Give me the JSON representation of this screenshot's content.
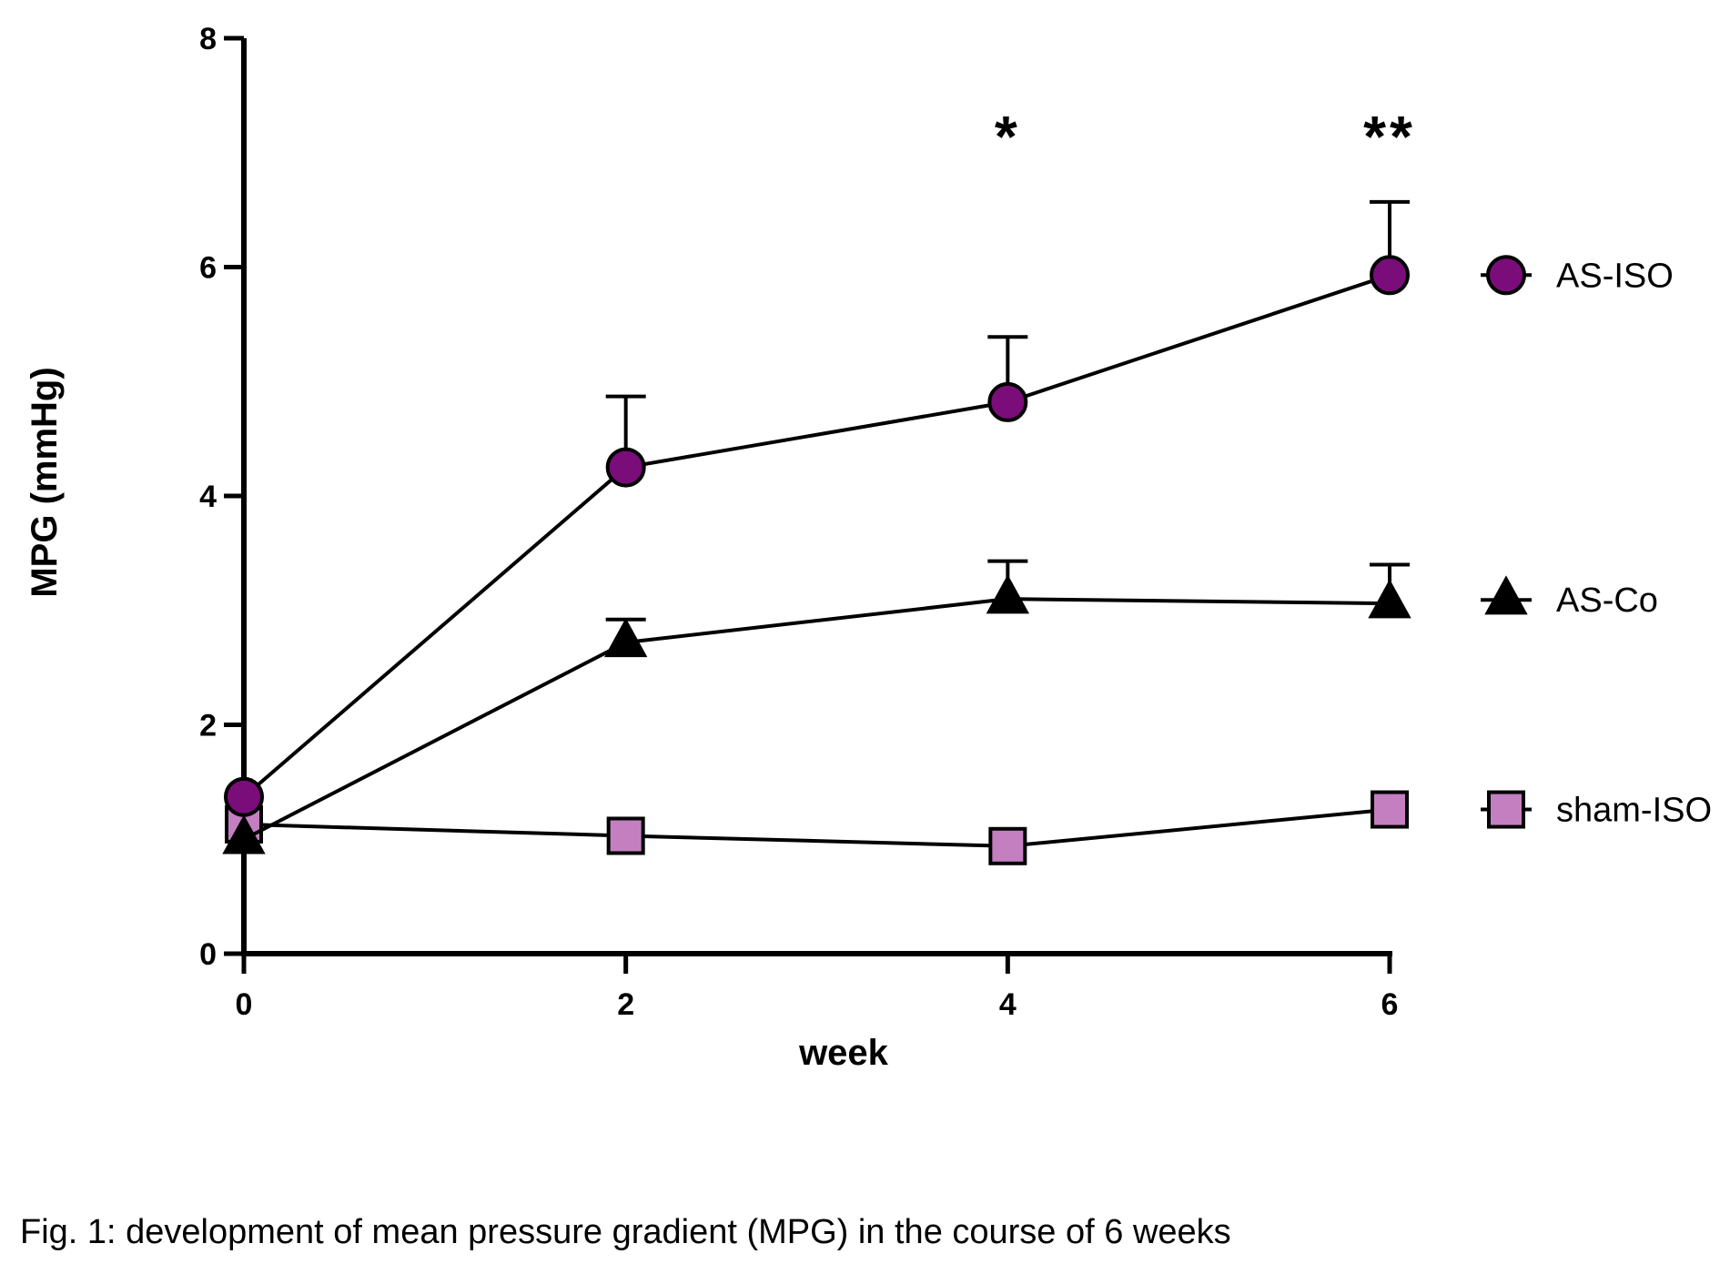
{
  "caption": "Fig. 1: development of mean pressure gradient (MPG) in the course of 6 weeks",
  "chart_data": {
    "type": "line",
    "title": "",
    "xlabel": "week",
    "ylabel": "MPG (mmHg)",
    "x": [
      0,
      2,
      4,
      6
    ],
    "xlim": [
      0,
      6
    ],
    "ylim": [
      0,
      8
    ],
    "xticks": [
      0,
      2,
      4,
      6
    ],
    "yticks": [
      0,
      2,
      4,
      6,
      8
    ],
    "grid": false,
    "legend": "right",
    "series": [
      {
        "name": "AS-ISO",
        "marker": "circle",
        "color": "#7a0d7a",
        "values": [
          1.37,
          4.25,
          4.82,
          5.93
        ],
        "error_upper": [
          null,
          0.62,
          0.57,
          0.64
        ]
      },
      {
        "name": "AS-Co",
        "marker": "triangle",
        "color": "#000000",
        "values": [
          1.0,
          2.72,
          3.1,
          3.06
        ],
        "error_upper": [
          null,
          0.2,
          0.33,
          0.34
        ]
      },
      {
        "name": "sham-ISO",
        "marker": "square",
        "color": "#c47fc0",
        "values": [
          1.13,
          1.03,
          0.94,
          1.26
        ],
        "error_upper": [
          null,
          null,
          null,
          null
        ]
      }
    ],
    "annotations": [
      {
        "x": 4,
        "text": "*"
      },
      {
        "x": 6,
        "text": "**"
      }
    ]
  }
}
